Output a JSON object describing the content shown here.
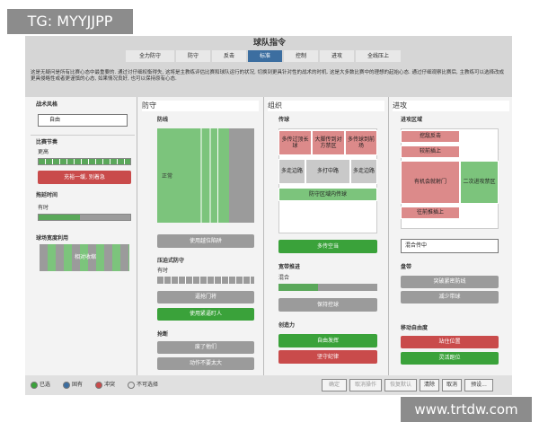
{
  "watermarks": {
    "top": "TG: MYYJJPP",
    "bottom": "www.trtdw.com"
  },
  "header": {
    "title": "球队指令",
    "tabs": [
      "全力防守",
      "防守",
      "反击",
      "标准",
      "控制",
      "进攻",
      "全线压上"
    ],
    "selected_tab": 3
  },
  "description": "这是无疑问是所有比赛心态中最重要的. 通过讨仔细权衡得失, 这将是主教练评估比赛和球队运行的状况, 切换到更具针对性的战术的时机. 这是大多数比赛中的理想的起始心态. 通过仔细观察比赛后, 主教练可以选择改成更具侵略性或者更谨慎的心态, 如果情况良好, 也可以保持原有心态.",
  "sidebar": {
    "style_label": "战术风格",
    "style_value": "自由",
    "tempo_label": "比赛节奏",
    "tempo_value": "更高",
    "tempo_button": "充裕一缓, 别着急",
    "time_label": "拖延时间",
    "time_value": "有时",
    "width_label": "球场宽度利用",
    "width_value": "相对收缩"
  },
  "defense": {
    "title": "防守",
    "line_label": "防线",
    "line_value": "正常",
    "offside": "使用越位陷阱",
    "press_label": "压迫式防守",
    "press_value": "有时",
    "press_buttons": [
      "逼抢门将",
      "使用紧逼盯人"
    ],
    "tackle_label": "抢断",
    "tackle_buttons": [
      "废了他们",
      "动作不要太大"
    ]
  },
  "build_up": {
    "title": "组织",
    "pass_label": "传球",
    "pass_cells": [
      "多传过顶长球",
      "大脚传到对方禁区",
      "多传球到前场",
      "多走边路",
      "多打中路",
      "多走边路",
      "防守区域内传球"
    ],
    "pass_button": "多传空当",
    "tempo_label": "宽带推进",
    "tempo_value": "混合",
    "tempo_button": "保持控球",
    "creative_label": "创造力",
    "creative_buttons": [
      "自由发挥",
      "坚守纪律"
    ]
  },
  "attack": {
    "title": "进攻",
    "zone_label": "进攻区域",
    "zone_cells": [
      "挖敌反击",
      "较前插上",
      "有机会就射门",
      "二次进攻禁区",
      "往前推插上"
    ],
    "cross": "混合传中",
    "dribble_label": "盘带",
    "dribble_buttons": [
      "突破紧密防线",
      "减少带球"
    ],
    "move_label": "移动自由度",
    "move_buttons": [
      "站住位置",
      "灵活跑位"
    ]
  },
  "footer": {
    "legend": [
      "已选",
      "固有",
      "冲突",
      "不可选择"
    ],
    "buttons": [
      "确定",
      "取消操作",
      "恢复默认",
      "清除",
      "取消",
      "预设..."
    ]
  }
}
